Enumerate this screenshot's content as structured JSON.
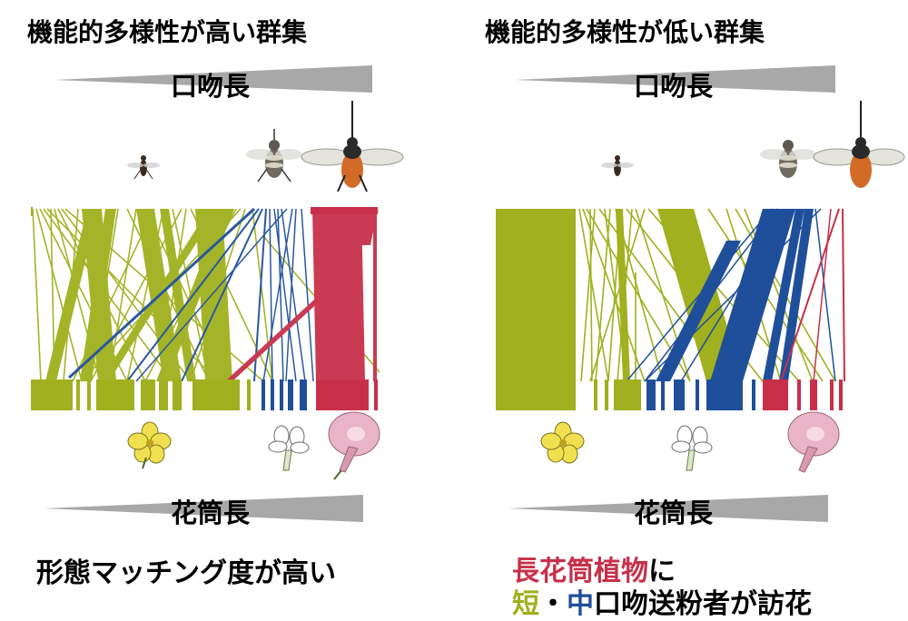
{
  "left": {
    "title": "機能的多様性が高い群集",
    "proboscis_label": "口吻長",
    "corolla_label": "花筒長",
    "caption": "形態マッチング度が高い"
  },
  "right": {
    "title": "機能的多様性が低い群集",
    "proboscis_label": "口吻長",
    "corolla_label": "花筒長",
    "caption_line1_red": "長花筒植物",
    "caption_line1_rest": "に",
    "caption_line2_green": "短",
    "caption_line2_dot": "・",
    "caption_line2_blue": "中",
    "caption_line2_rest": "口吻送粉者が訪花"
  },
  "colors": {
    "short": "#a0b01e",
    "medium": "#1f4f9a",
    "long": "#c8304a",
    "wedge": "#a8a8a8"
  },
  "icons": [
    "small-bee-icon",
    "medium-bee-icon",
    "long-tongued-bee-icon",
    "yellow-flower-icon",
    "white-flower-icon",
    "pink-morning-glory-icon"
  ]
}
